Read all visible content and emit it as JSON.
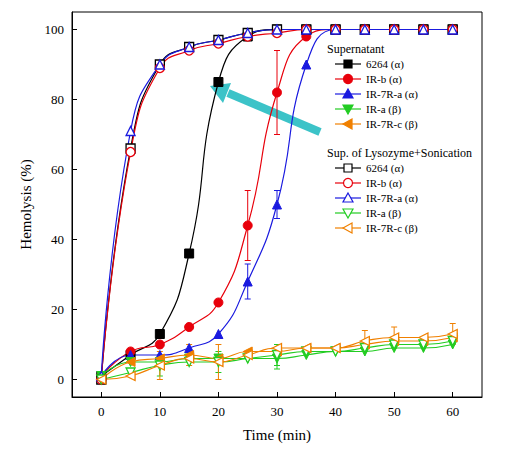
{
  "chart_data": {
    "type": "line",
    "x_label": "Time (min)",
    "y_label": "Hemolysis (%)",
    "annotations": [
      "Supernatant",
      "Sup. of Lysozyme+Sonication"
    ],
    "x": [
      0,
      5,
      10,
      15,
      20,
      25,
      30,
      35,
      40,
      45,
      50,
      55,
      60
    ],
    "xlim": [
      -5,
      65
    ],
    "xticks": [
      0,
      10,
      20,
      30,
      40,
      50,
      60
    ],
    "ylim": [
      -5,
      105
    ],
    "yticks": [
      0,
      20,
      40,
      60,
      80,
      100
    ],
    "grid": false,
    "series": [
      {
        "name": "6264 (α)",
        "color": "#000000",
        "marker": "square",
        "values": [
          1,
          7,
          13,
          36,
          85,
          98,
          100,
          100,
          100,
          100,
          100,
          100,
          100
        ],
        "errors": [
          null,
          null,
          null,
          null,
          null,
          null,
          null,
          null,
          null,
          null,
          null,
          null,
          null
        ]
      },
      {
        "name": "IR-b (α)",
        "color": "#e8000b",
        "marker": "circle",
        "values": [
          1,
          8,
          10,
          15,
          22,
          44,
          82,
          98,
          100,
          100,
          100,
          100,
          100
        ],
        "errors": [
          null,
          null,
          null,
          null,
          null,
          10,
          12,
          null,
          null,
          null,
          null,
          null,
          null
        ]
      },
      {
        "name": "IR-7R-a (α)",
        "color": "#1a1adf",
        "marker": "triangle-up",
        "values": [
          1,
          7,
          7,
          9,
          13,
          28,
          50,
          90,
          100,
          100,
          100,
          100,
          100
        ],
        "errors": [
          null,
          null,
          null,
          null,
          null,
          5,
          4,
          null,
          null,
          null,
          null,
          null,
          null
        ]
      },
      {
        "name": "IR-a (β)",
        "color": "#22cc22",
        "marker": "triangle-down",
        "values": [
          1,
          5,
          5,
          6,
          6,
          6,
          6,
          7,
          8,
          8,
          9,
          9,
          10
        ],
        "errors": [
          null,
          null,
          null,
          null,
          null,
          null,
          3,
          null,
          null,
          null,
          null,
          null,
          null
        ]
      },
      {
        "name": "IR-7R-c (β)",
        "color": "#f08000",
        "marker": "triangle-left",
        "values": [
          0,
          5,
          6,
          7,
          6,
          8,
          8,
          9,
          9,
          10,
          11,
          11,
          12
        ],
        "errors": [
          null,
          null,
          null,
          3,
          null,
          null,
          null,
          null,
          null,
          null,
          null,
          null,
          null
        ]
      },
      {
        "name": "6264 (α)",
        "color": "#000000",
        "marker": "square-open",
        "values": [
          0,
          66,
          90,
          95,
          97,
          99,
          100,
          100,
          100,
          100,
          100,
          100,
          100
        ],
        "errors": [
          null,
          null,
          null,
          null,
          null,
          null,
          null,
          null,
          null,
          null,
          null,
          null,
          null
        ]
      },
      {
        "name": "IR-b (α)",
        "color": "#e8000b",
        "marker": "circle-open",
        "values": [
          0,
          65,
          89,
          94,
          96,
          98,
          99,
          100,
          100,
          100,
          100,
          100,
          100
        ],
        "errors": [
          null,
          null,
          null,
          null,
          null,
          null,
          null,
          null,
          null,
          null,
          null,
          null,
          null
        ]
      },
      {
        "name": "IR-7R-a (α)",
        "color": "#1a1adf",
        "marker": "triangle-up-open",
        "values": [
          1,
          71,
          90,
          95,
          97,
          99,
          100,
          100,
          100,
          100,
          100,
          100,
          100
        ],
        "errors": [
          null,
          null,
          null,
          null,
          null,
          null,
          null,
          null,
          null,
          null,
          null,
          null,
          null
        ]
      },
      {
        "name": "IR-a (β)",
        "color": "#22cc22",
        "marker": "triangle-down-open",
        "values": [
          0,
          2,
          4,
          5,
          5,
          6,
          7,
          8,
          8,
          9,
          10,
          10,
          11
        ],
        "errors": [
          null,
          null,
          3,
          null,
          3,
          null,
          3,
          null,
          null,
          null,
          null,
          null,
          null
        ]
      },
      {
        "name": "IR-7R-c (β)",
        "color": "#f08000",
        "marker": "triangle-left-open",
        "values": [
          0,
          1,
          4,
          6,
          5,
          7,
          9,
          9,
          9,
          11,
          12,
          12,
          13
        ],
        "errors": [
          null,
          null,
          4,
          null,
          5,
          null,
          null,
          null,
          null,
          3,
          3,
          null,
          3
        ]
      }
    ]
  }
}
